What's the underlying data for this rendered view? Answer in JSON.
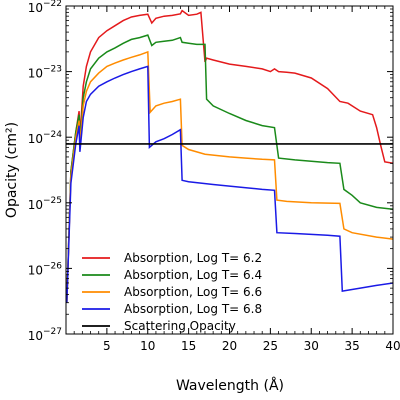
{
  "chart_data": {
    "type": "line",
    "title": "",
    "xlabel": "Wavelength (Å)",
    "ylabel": "Opacity (cm²)",
    "x_ticks": [
      "5",
      "10",
      "15",
      "20",
      "25",
      "30",
      "35",
      "40"
    ],
    "y_ticks": [
      "10",
      "10",
      "10",
      "10",
      "10",
      "10"
    ],
    "y_tick_exponents": [
      "−27",
      "−26",
      "−25",
      "−24",
      "−23",
      "−22"
    ],
    "xlim": [
      0,
      40
    ],
    "ylim_log10": [
      -27,
      -22
    ],
    "yscale": "log",
    "legend_position": "lower-left",
    "series": [
      {
        "name": "Absorption, Log T= 6.2",
        "color": "#e41a1c",
        "x": [
          0.1,
          0.6,
          1.2,
          1.6,
          1.7,
          1.8,
          2.1,
          2.5,
          3.0,
          4.0,
          5.0,
          6.0,
          7.0,
          8.0,
          9.0,
          10.0,
          10.5,
          11.0,
          12.0,
          13.0,
          14.0,
          14.2,
          15.0,
          16.0,
          16.5,
          17.0,
          17.2,
          18.0,
          20.0,
          22.0,
          24.0,
          25.0,
          25.5,
          26.0,
          27.0,
          28.0,
          30.0,
          32.0,
          33.5,
          34.5,
          36.0,
          37.5,
          38.0,
          38.5,
          39.0,
          40.0
        ],
        "y": [
          3e-27,
          3e-25,
          1.2e-24,
          2.5e-24,
          1.2e-24,
          1.5e-24,
          6e-24,
          1.2e-23,
          2e-23,
          3.3e-23,
          4.2e-23,
          5e-23,
          6e-23,
          6.8e-23,
          7.2e-23,
          7.5e-23,
          5.5e-23,
          6.5e-23,
          7e-23,
          7.2e-23,
          7.6e-23,
          8.5e-23,
          7.2e-23,
          7.5e-23,
          8e-23,
          1.4e-23,
          1.6e-23,
          1.5e-23,
          1.3e-23,
          1.2e-23,
          1.1e-23,
          1e-23,
          1.1e-23,
          1e-23,
          9.8e-24,
          9.5e-24,
          8e-24,
          5.5e-24,
          3.5e-24,
          3.3e-24,
          2.5e-24,
          2.2e-24,
          1.4e-24,
          7.5e-25,
          4.2e-25,
          4e-25
        ]
      },
      {
        "name": "Absorption, Log T= 6.4",
        "color": "#1a8a1a",
        "x": [
          0.1,
          0.6,
          1.2,
          1.6,
          1.7,
          1.8,
          2.1,
          2.5,
          3.0,
          4.0,
          5.0,
          6.0,
          7.0,
          8.0,
          9.0,
          10.0,
          10.5,
          11.0,
          12.0,
          13.0,
          14.0,
          14.2,
          15.0,
          16.0,
          17.0,
          17.2,
          18.0,
          20.0,
          22.0,
          24.0,
          25.5,
          26.0,
          28.0,
          30.0,
          32.0,
          33.5,
          34.0,
          35.0,
          36.0,
          38.0,
          40.0
        ],
        "y": [
          3e-27,
          3e-25,
          1.2e-24,
          2.2e-24,
          1e-24,
          1.2e-24,
          4e-24,
          7e-24,
          1.1e-23,
          1.6e-23,
          2e-23,
          2.3e-23,
          2.7e-23,
          3.1e-23,
          3.3e-23,
          3.6e-23,
          2.5e-23,
          2.8e-23,
          2.9e-23,
          3e-23,
          3.3e-23,
          2.8e-23,
          2.7e-23,
          2.6e-23,
          2.6e-23,
          3.8e-24,
          3e-24,
          2.3e-24,
          1.8e-24,
          1.5e-24,
          1.4e-24,
          4.8e-25,
          4.5e-25,
          4.3e-25,
          4.1e-25,
          4e-25,
          1.6e-25,
          1.3e-25,
          1e-25,
          8.5e-26,
          8e-26
        ]
      },
      {
        "name": "Absorption, Log T= 6.6",
        "color": "#ff8c00",
        "x": [
          0.1,
          0.6,
          1.2,
          1.6,
          1.7,
          1.8,
          2.1,
          2.5,
          3.0,
          4.0,
          5.0,
          6.0,
          7.0,
          8.0,
          9.0,
          10.0,
          10.3,
          11.0,
          12.0,
          13.0,
          14.0,
          14.2,
          15.0,
          17.0,
          20.0,
          22.0,
          24.0,
          25.5,
          25.8,
          27.0,
          30.0,
          33.5,
          34.0,
          35.0,
          38.0,
          40.0
        ],
        "y": [
          3e-27,
          2.5e-25,
          1e-24,
          1.8e-24,
          8e-25,
          1e-24,
          3e-24,
          5e-24,
          7e-24,
          9.5e-24,
          1.2e-23,
          1.35e-23,
          1.5e-23,
          1.65e-23,
          1.8e-23,
          2e-23,
          2.4e-24,
          3e-24,
          3.3e-24,
          3.5e-24,
          3.8e-24,
          7.5e-25,
          6.5e-25,
          5.5e-25,
          5e-25,
          4.8e-25,
          4.6e-25,
          4.5e-25,
          1.1e-25,
          1.05e-25,
          1e-25,
          9.8e-26,
          4e-26,
          3.5e-26,
          3e-26,
          2.8e-26
        ]
      },
      {
        "name": "Absorption, Log T= 6.8",
        "color": "#1a1ae6",
        "x": [
          0.1,
          0.6,
          1.2,
          1.6,
          1.7,
          1.8,
          2.1,
          2.5,
          3.0,
          4.0,
          5.0,
          6.0,
          7.0,
          8.0,
          9.0,
          10.0,
          10.2,
          11.0,
          12.0,
          13.0,
          14.0,
          14.2,
          15.0,
          18.0,
          20.0,
          22.0,
          24.0,
          25.5,
          25.8,
          28.0,
          30.0,
          32.0,
          33.5,
          33.8,
          36.0,
          38.0,
          40.0
        ],
        "y": [
          3e-27,
          2e-25,
          8e-25,
          1.5e-24,
          6e-25,
          8e-25,
          2e-24,
          3.5e-24,
          4.5e-24,
          6e-24,
          7e-24,
          8e-24,
          9e-24,
          1e-23,
          1.1e-23,
          1.2e-23,
          7e-25,
          8.5e-25,
          9.5e-25,
          1.1e-24,
          1.3e-24,
          2.2e-25,
          2.1e-25,
          1.9e-25,
          1.8e-25,
          1.7e-25,
          1.6e-25,
          1.55e-25,
          3.5e-26,
          3.4e-26,
          3.3e-26,
          3.2e-26,
          3.1e-26,
          4.5e-27,
          5e-27,
          5.5e-27,
          6e-27
        ]
      },
      {
        "name": "Scattering Opacity",
        "color": "#000000",
        "x": [
          0,
          40
        ],
        "y": [
          7.9e-25,
          7.9e-25
        ]
      }
    ]
  }
}
